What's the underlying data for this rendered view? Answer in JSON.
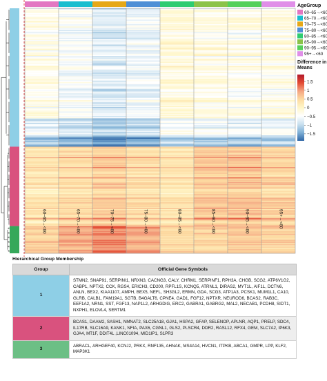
{
  "chart_data": {
    "type": "heatmap",
    "columns": [
      "60–65→<60",
      "65–70→<60",
      "70–75→<60",
      "75–80→<60",
      "80–85→<60",
      "85–90→<60",
      "90–95→<60",
      "95+→<60"
    ],
    "column_colors": [
      "#e377c2",
      "#17becf",
      "#e6a817",
      "#4f8fd6",
      "#2ecc71",
      "#8bc34a",
      "#55d05a",
      "#e08fe8"
    ],
    "row_clusters": [
      {
        "group": "1",
        "rows": 122,
        "color": "#8ecfe6"
      },
      {
        "group": "2",
        "rows": 70,
        "color": "#d9527e"
      },
      {
        "group": "3",
        "rows": 24,
        "color": "#35a85a"
      }
    ],
    "color_scale": {
      "title": "Difference in\nMeans",
      "min": -1.9,
      "max": 1.9,
      "ticks": [
        1.5,
        1,
        0.5,
        0,
        -0.5,
        -1,
        -1.5
      ],
      "tick_labels": [
        "1.5",
        "1",
        "0.5",
        "0",
        "−0.5",
        "−1",
        "−1.5"
      ],
      "colors_high_to_low": [
        "#b2182b",
        "#e34a33",
        "#f4a582",
        "#fddba2",
        "#fff6c8",
        "#ffffff",
        "#c9e0ef",
        "#7fb0d6",
        "#2f66a6"
      ]
    },
    "column_legend": {
      "title": "AgeGroup",
      "entries": [
        "60–65→<60",
        "65–70→<60",
        "70–75→<60",
        "75–80→<60",
        "80–85→<60",
        "85–90→<60",
        "90–95→<60",
        "95+→<60"
      ]
    }
  },
  "membership": {
    "title": "Hierarchical Group Membership",
    "headers": [
      "Group",
      "Official Gene Symbols"
    ],
    "rows": [
      {
        "group": "1",
        "color": "#8ecfe6",
        "genes": "STMN2, SNAP91, SERPINI1, NRXN3, CACNG3, CALY, CHRM1, SERPINF1, RPH3A, CHGB, SCG2, ATP6V1G2, CABP1, NPTX2, CCK, RGS4, ERICH3, CD200, RPFL1S, KCNQ5, ATRNL1, DIRAS2, MYT1L, AIF1L, DCTN6, ANLN, BEX2, KIAA1107, AMPH, BEX5, NEFL, SH3GL2, ERMN, GDA, SCG3, ATP1A3, PCSK1, MUM1L1, CA10, GLRB, CALB1, FAM19A1, SGTB, B4GALT6, CPNE4, GAD1, FGF12, NPTXR, NEUROD6, BCAS2, RAB3C, EEF1A2, NRN1, SST, FGF13, NAP1L2, ARHGDIG, ERC2, GABRA1, GABRG2, MAL2, NECAB1, PCDH8, SIDT1, NXPH1, ELOVL4, SERTM1"
      },
      {
        "group": "2",
        "color": "#d9527e",
        "genes": "BCAS1, DAAM2, SASH1, NMNAT2, SLC25A18, GJA1, HSPA2, GFAP, SELENOP, APLNR, AQP1, PRELP, SDC4, IL17RB, SLC16A9, KANK1, NFIA, PAX6, CGNL1, GLS2, PLSCR4, DDR2, RASL12, RFX4, GEM, SLC7A2, IP6K3, GJA4, MT1F, DDIT4L ,LINC01094, MID1IP1, S1PR3"
      },
      {
        "group": "3",
        "color": "#6cbf85",
        "genes": "ABRACL, ARHGEF40, KCNJ2, PRKX, RNF135, AHNAK, MS4A14, HVCN1, ITPKB, ABCA1, GMPR, LPP, KLF2, MAP3K1"
      }
    ]
  }
}
